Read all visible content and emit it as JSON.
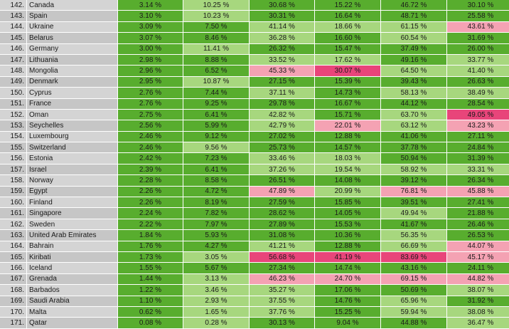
{
  "palette": {
    "green": "#58ad2e",
    "light_green": "#a7d77e",
    "pink": "#f4a2b3",
    "dark_pink": "#e8457a",
    "grey": "#d4d4d4"
  },
  "rows": [
    {
      "rank": "142.",
      "country": "Canada",
      "values": [
        "3.14 %",
        "10.25 %",
        "30.68 %",
        "15.22 %",
        "46.72 %",
        "30.10 %"
      ],
      "tones": [
        "g",
        "lg",
        "g",
        "g",
        "g",
        "g"
      ]
    },
    {
      "rank": "143.",
      "country": "Spain",
      "values": [
        "3.10 %",
        "10.23 %",
        "30.31 %",
        "16.64 %",
        "48.71 %",
        "25.58 %"
      ],
      "tones": [
        "g",
        "lg",
        "g",
        "g",
        "g",
        "g"
      ]
    },
    {
      "rank": "144.",
      "country": "Ukraine",
      "values": [
        "3.09 %",
        "7.50 %",
        "41.14 %",
        "18.66 %",
        "61.15 %",
        "43.61 %"
      ],
      "tones": [
        "g",
        "g",
        "lg",
        "lg",
        "lg",
        "p"
      ]
    },
    {
      "rank": "145.",
      "country": "Belarus",
      "values": [
        "3.07 %",
        "8.46 %",
        "36.28 %",
        "16.60 %",
        "60.54 %",
        "31.69 %"
      ],
      "tones": [
        "g",
        "g",
        "lg",
        "g",
        "lg",
        "g"
      ]
    },
    {
      "rank": "146.",
      "country": "Germany",
      "values": [
        "3.00 %",
        "11.41 %",
        "26.32 %",
        "15.47 %",
        "37.49 %",
        "26.00 %"
      ],
      "tones": [
        "g",
        "lg",
        "g",
        "g",
        "g",
        "g"
      ]
    },
    {
      "rank": "147.",
      "country": "Lithuania",
      "values": [
        "2.98 %",
        "8.88 %",
        "33.52 %",
        "17.62 %",
        "49.16 %",
        "33.77 %"
      ],
      "tones": [
        "g",
        "g",
        "lg",
        "lg",
        "g",
        "lg"
      ]
    },
    {
      "rank": "148.",
      "country": "Mongolia",
      "values": [
        "2.96 %",
        "6.52 %",
        "45.33 %",
        "30.07 %",
        "64.50 %",
        "41.40 %"
      ],
      "tones": [
        "g",
        "g",
        "p",
        "dp",
        "lg",
        "lg"
      ]
    },
    {
      "rank": "149.",
      "country": "Denmark",
      "values": [
        "2.95 %",
        "10.87 %",
        "27.15 %",
        "15.39 %",
        "39.43 %",
        "26.63 %"
      ],
      "tones": [
        "g",
        "lg",
        "g",
        "g",
        "g",
        "g"
      ]
    },
    {
      "rank": "150.",
      "country": "Cyprus",
      "values": [
        "2.76 %",
        "7.44 %",
        "37.11 %",
        "14.73 %",
        "58.13 %",
        "38.49 %"
      ],
      "tones": [
        "g",
        "g",
        "lg",
        "g",
        "lg",
        "lg"
      ]
    },
    {
      "rank": "151.",
      "country": "France",
      "values": [
        "2.76 %",
        "9.25 %",
        "29.78 %",
        "16.67 %",
        "44.12 %",
        "28.54 %"
      ],
      "tones": [
        "g",
        "g",
        "g",
        "g",
        "g",
        "g"
      ]
    },
    {
      "rank": "152.",
      "country": "Oman",
      "values": [
        "2.75 %",
        "6.41 %",
        "42.82 %",
        "15.71 %",
        "63.70 %",
        "49.05 %"
      ],
      "tones": [
        "g",
        "g",
        "lg",
        "g",
        "lg",
        "dp"
      ]
    },
    {
      "rank": "153.",
      "country": "Seychelles",
      "values": [
        "2.56 %",
        "5.99 %",
        "42.79 %",
        "22.01 %",
        "63.12 %",
        "43.23 %"
      ],
      "tones": [
        "g",
        "g",
        "lg",
        "p",
        "lg",
        "p"
      ]
    },
    {
      "rank": "154.",
      "country": "Luxembourg",
      "values": [
        "2.46 %",
        "9.12 %",
        "27.02 %",
        "12.88 %",
        "41.06 %",
        "27.11 %"
      ],
      "tones": [
        "g",
        "g",
        "g",
        "g",
        "g",
        "g"
      ]
    },
    {
      "rank": "155.",
      "country": "Switzerland",
      "values": [
        "2.46 %",
        "9.56 %",
        "25.73 %",
        "14.57 %",
        "37.78 %",
        "24.84 %"
      ],
      "tones": [
        "g",
        "lg",
        "g",
        "g",
        "g",
        "g"
      ]
    },
    {
      "rank": "156.",
      "country": "Estonia",
      "values": [
        "2.42 %",
        "7.23 %",
        "33.46 %",
        "18.03 %",
        "50.94 %",
        "31.39 %"
      ],
      "tones": [
        "g",
        "g",
        "lg",
        "lg",
        "g",
        "g"
      ]
    },
    {
      "rank": "157.",
      "country": "Israel",
      "values": [
        "2.39 %",
        "6.41 %",
        "37.26 %",
        "19.54 %",
        "58.92 %",
        "33.31 %"
      ],
      "tones": [
        "g",
        "g",
        "lg",
        "lg",
        "lg",
        "lg"
      ]
    },
    {
      "rank": "158.",
      "country": "Norway",
      "values": [
        "2.28 %",
        "8.58 %",
        "26.51 %",
        "14.08 %",
        "39.12 %",
        "26.34 %"
      ],
      "tones": [
        "g",
        "g",
        "g",
        "g",
        "g",
        "g"
      ]
    },
    {
      "rank": "159.",
      "country": "Egypt",
      "values": [
        "2.26 %",
        "4.72 %",
        "47.89 %",
        "20.99 %",
        "76.81 %",
        "45.88 %"
      ],
      "tones": [
        "g",
        "g",
        "p",
        "lg",
        "p",
        "p"
      ]
    },
    {
      "rank": "160.",
      "country": "Finland",
      "values": [
        "2.26 %",
        "8.19 %",
        "27.59 %",
        "15.85 %",
        "39.51 %",
        "27.41 %"
      ],
      "tones": [
        "g",
        "g",
        "g",
        "g",
        "g",
        "g"
      ]
    },
    {
      "rank": "161.",
      "country": "Singapore",
      "values": [
        "2.24 %",
        "7.82 %",
        "28.62 %",
        "14.05 %",
        "49.94 %",
        "21.88 %"
      ],
      "tones": [
        "g",
        "g",
        "g",
        "g",
        "lg",
        "g"
      ]
    },
    {
      "rank": "162.",
      "country": "Sweden",
      "values": [
        "2.22 %",
        "7.97 %",
        "27.89 %",
        "15.53 %",
        "41.67 %",
        "26.46 %"
      ],
      "tones": [
        "g",
        "g",
        "g",
        "g",
        "g",
        "g"
      ]
    },
    {
      "rank": "163.",
      "country": "United Arab Emirates",
      "values": [
        "1.84 %",
        "5.93 %",
        "31.08 %",
        "10.36 %",
        "56.35 %",
        "26.53 %"
      ],
      "tones": [
        "g",
        "g",
        "g",
        "g",
        "lg",
        "g"
      ]
    },
    {
      "rank": "164.",
      "country": "Bahrain",
      "values": [
        "1.76 %",
        "4.27 %",
        "41.21 %",
        "12.88 %",
        "66.69 %",
        "44.07 %"
      ],
      "tones": [
        "g",
        "g",
        "lg",
        "g",
        "lg",
        "p"
      ]
    },
    {
      "rank": "165.",
      "country": "Kiribati",
      "values": [
        "1.73 %",
        "3.05 %",
        "56.68 %",
        "41.19 %",
        "83.69 %",
        "45.17 %"
      ],
      "tones": [
        "g",
        "lg",
        "dp",
        "dp",
        "dp",
        "p"
      ]
    },
    {
      "rank": "166.",
      "country": "Iceland",
      "values": [
        "1.55 %",
        "5.67 %",
        "27.34 %",
        "14.74 %",
        "43.16 %",
        "24.11 %"
      ],
      "tones": [
        "g",
        "g",
        "g",
        "g",
        "g",
        "g"
      ]
    },
    {
      "rank": "167.",
      "country": "Grenada",
      "values": [
        "1.44 %",
        "3.13 %",
        "46.23 %",
        "24.70 %",
        "69.15 %",
        "44.82 %"
      ],
      "tones": [
        "g",
        "lg",
        "p",
        "p",
        "p",
        "p"
      ]
    },
    {
      "rank": "168.",
      "country": "Barbados",
      "values": [
        "1.22 %",
        "3.46 %",
        "35.27 %",
        "17.06 %",
        "50.69 %",
        "38.07 %"
      ],
      "tones": [
        "g",
        "lg",
        "lg",
        "g",
        "g",
        "lg"
      ]
    },
    {
      "rank": "169.",
      "country": "Saudi Arabia",
      "values": [
        "1.10 %",
        "2.93 %",
        "37.55 %",
        "14.76 %",
        "65.96 %",
        "31.92 %"
      ],
      "tones": [
        "g",
        "lg",
        "lg",
        "g",
        "lg",
        "g"
      ]
    },
    {
      "rank": "170.",
      "country": "Malta",
      "values": [
        "0.62 %",
        "1.65 %",
        "37.76 %",
        "15.25 %",
        "59.94 %",
        "38.08 %"
      ],
      "tones": [
        "g",
        "lg",
        "lg",
        "g",
        "lg",
        "lg"
      ]
    },
    {
      "rank": "171.",
      "country": "Qatar",
      "values": [
        "0.08 %",
        "0.28 %",
        "30.13 %",
        "9.04 %",
        "44.88 %",
        "36.47 %"
      ],
      "tones": [
        "g",
        "lg",
        "g",
        "g",
        "g",
        "lg"
      ]
    }
  ]
}
